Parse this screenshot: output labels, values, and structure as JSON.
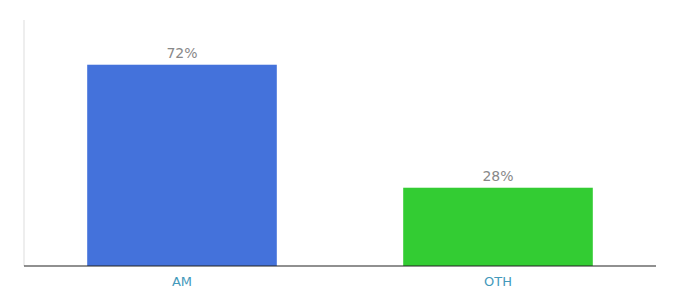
{
  "chart_data": {
    "type": "bar",
    "categories": [
      "AM",
      "OTH"
    ],
    "values": [
      72,
      28
    ],
    "value_labels": [
      "72%",
      "28%"
    ],
    "colors": [
      "#4472db",
      "#33cc33"
    ],
    "ylim": [
      0,
      88
    ],
    "data_labels": true,
    "tick_labels": "x"
  }
}
